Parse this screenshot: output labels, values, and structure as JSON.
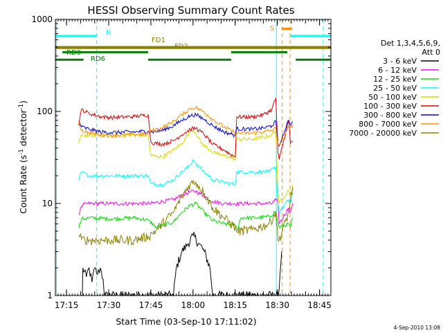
{
  "chart_data": {
    "type": "line",
    "title": "HESSI Observing Summary Count Rates",
    "xlabel": "Start Time (03-Sep-10 17:11:02)",
    "ylabel": "Count Rate (s",
    "ylabel_sup1": "-1",
    "ylabel_mid": " detector",
    "ylabel_sup2": "-1",
    "ylabel_end": ")",
    "y_scale": "log",
    "ylim": [
      1,
      1000
    ],
    "x_unit": "minutes after 17:11:02",
    "xlim": [
      0,
      98
    ],
    "x_ticks": [
      {
        "label": "17:15",
        "x": 3.97
      },
      {
        "label": "17:30",
        "x": 18.97
      },
      {
        "label": "17:45",
        "x": 33.97
      },
      {
        "label": "18:00",
        "x": 48.97
      },
      {
        "label": "18:15",
        "x": 63.97
      },
      {
        "label": "18:30",
        "x": 78.97
      },
      {
        "label": "18:45",
        "x": 93.97
      }
    ],
    "y_ticks": [
      {
        "label": "1",
        "value": 1
      },
      {
        "label": "10",
        "value": 10
      },
      {
        "label": "100",
        "value": 100
      },
      {
        "label": "1000",
        "value": 1000
      }
    ],
    "timestamp": "4-Sep-2010 13:08",
    "legend": {
      "header1": "Det 1,3,4,5,6,9,",
      "header2": "Att 0",
      "entries": [
        {
          "label": "3 - 6 keV",
          "color": "#000000"
        },
        {
          "label": "6 - 12 keV",
          "color": "#ff00ff"
        },
        {
          "label": "12 - 25 keV",
          "color": "#00e000"
        },
        {
          "label": "25 - 50 keV",
          "color": "#00ffff"
        },
        {
          "label": "50 - 100 keV",
          "color": "#d8d800"
        },
        {
          "label": "100 - 300 keV",
          "color": "#e00000"
        },
        {
          "label": "300 - 800 keV",
          "color": "#0000e0"
        },
        {
          "label": "800 - 7000 keV",
          "color": "#ff8c00"
        },
        {
          "label": "7000 - 20000 keV",
          "color": "#8b8000"
        }
      ]
    },
    "series": [
      {
        "name": "3 - 6 keV",
        "color": "#000000",
        "points": [
          [
            9.6,
            1
          ],
          [
            9.8,
            2
          ],
          [
            11,
            1.6
          ],
          [
            12,
            2
          ],
          [
            13,
            1.4
          ],
          [
            14,
            2
          ],
          [
            15,
            1.7
          ],
          [
            16,
            2
          ],
          [
            17,
            1.5
          ],
          [
            17.5,
            1
          ],
          [
            42,
            1
          ],
          [
            43,
            2
          ],
          [
            45,
            3
          ],
          [
            47,
            3.6
          ],
          [
            49,
            4.5
          ],
          [
            51,
            3.7
          ],
          [
            53,
            3
          ],
          [
            55,
            2
          ],
          [
            56,
            1
          ],
          [
            79.3,
            1
          ],
          [
            80.5,
            3
          ]
        ]
      },
      {
        "name": "6 - 12 keV",
        "color": "#ff00ff",
        "points": [
          [
            8.3,
            7.5
          ],
          [
            9.3,
            9.3
          ],
          [
            11,
            10
          ],
          [
            14,
            10
          ],
          [
            20,
            10
          ],
          [
            28,
            10
          ],
          [
            34,
            10
          ],
          [
            38,
            10.5
          ],
          [
            42,
            11
          ],
          [
            45,
            12.3
          ],
          [
            48,
            13.4
          ],
          [
            50,
            13.6
          ],
          [
            53,
            12
          ],
          [
            56,
            10.5
          ],
          [
            60,
            10
          ],
          [
            66,
            10
          ],
          [
            70,
            10
          ],
          [
            74,
            10
          ],
          [
            77,
            10
          ],
          [
            78.4,
            11
          ],
          [
            79.2,
            10
          ],
          [
            79.6,
            6
          ],
          [
            83,
            9
          ],
          [
            83.6,
            8
          ],
          [
            84.4,
            10
          ]
        ]
      },
      {
        "name": "12 - 25 keV",
        "color": "#00e000",
        "points": [
          [
            8.3,
            5.4
          ],
          [
            9.3,
            6.8
          ],
          [
            12,
            7
          ],
          [
            20,
            6.8
          ],
          [
            28,
            7
          ],
          [
            33,
            6.6
          ],
          [
            36,
            5.5
          ],
          [
            42,
            6.3
          ],
          [
            45,
            8
          ],
          [
            48,
            9.6
          ],
          [
            50,
            10
          ],
          [
            53,
            8
          ],
          [
            56,
            6.5
          ],
          [
            60,
            6
          ],
          [
            64,
            5.8
          ],
          [
            64.5,
            5
          ],
          [
            66,
            7
          ],
          [
            72,
            7
          ],
          [
            76,
            7.2
          ],
          [
            78.4,
            8.2
          ],
          [
            79.2,
            6
          ],
          [
            79.6,
            5.5
          ],
          [
            83,
            6
          ],
          [
            83.6,
            5.5
          ],
          [
            84.4,
            7
          ]
        ]
      },
      {
        "name": "25 - 50 keV",
        "color": "#00ffff",
        "points": [
          [
            8.3,
            18
          ],
          [
            9.3,
            22
          ],
          [
            12,
            20
          ],
          [
            16,
            20
          ],
          [
            20,
            20
          ],
          [
            28,
            20
          ],
          [
            33,
            20
          ],
          [
            34,
            16.5
          ],
          [
            38,
            16
          ],
          [
            42,
            18
          ],
          [
            45,
            22
          ],
          [
            48,
            26
          ],
          [
            49,
            30
          ],
          [
            50,
            27
          ],
          [
            53,
            22
          ],
          [
            56,
            18
          ],
          [
            60,
            17
          ],
          [
            64,
            16
          ],
          [
            64.5,
            22
          ],
          [
            70,
            22
          ],
          [
            76,
            22
          ],
          [
            78.4,
            25
          ],
          [
            79.2,
            10
          ],
          [
            79.6,
            8
          ],
          [
            83,
            11
          ],
          [
            83.6,
            10
          ],
          [
            84.4,
            13
          ]
        ]
      },
      {
        "name": "50 - 100 keV",
        "color": "#d8d800",
        "points": [
          [
            8.3,
            45
          ],
          [
            9.3,
            55
          ],
          [
            12,
            55
          ],
          [
            16,
            55
          ],
          [
            20,
            55
          ],
          [
            28,
            56
          ],
          [
            33,
            55
          ],
          [
            34,
            33
          ],
          [
            38,
            32
          ],
          [
            42,
            38
          ],
          [
            45,
            45
          ],
          [
            47,
            55
          ],
          [
            48.5,
            65
          ],
          [
            50,
            58
          ],
          [
            52,
            45
          ],
          [
            55,
            38
          ],
          [
            58,
            34
          ],
          [
            62,
            32
          ],
          [
            64,
            30
          ],
          [
            64.5,
            50
          ],
          [
            70,
            50
          ],
          [
            76,
            54
          ],
          [
            78.4,
            60
          ],
          [
            79.2,
            13
          ],
          [
            79.6,
            10
          ],
          [
            83,
            14
          ],
          [
            83.6,
            12
          ],
          [
            84.4,
            16
          ]
        ]
      },
      {
        "name": "100 - 300 keV",
        "color": "#e00000",
        "points": [
          [
            8.3,
            70
          ],
          [
            9.3,
            105
          ],
          [
            12,
            95
          ],
          [
            16,
            88
          ],
          [
            20,
            86
          ],
          [
            28,
            88
          ],
          [
            33,
            92
          ],
          [
            34,
            46
          ],
          [
            38,
            44
          ],
          [
            42,
            48
          ],
          [
            45,
            56
          ],
          [
            48,
            64
          ],
          [
            50,
            66
          ],
          [
            53,
            56
          ],
          [
            56,
            44
          ],
          [
            60,
            38
          ],
          [
            64,
            32
          ],
          [
            64.5,
            87
          ],
          [
            70,
            87
          ],
          [
            74,
            92
          ],
          [
            77,
            105
          ],
          [
            78.4,
            140
          ],
          [
            79.2,
            35
          ],
          [
            79.6,
            30
          ],
          [
            83,
            80
          ],
          [
            83.6,
            45
          ],
          [
            84.4,
            48
          ]
        ]
      },
      {
        "name": "300 - 800 keV",
        "color": "#0000e0",
        "points": [
          [
            8.3,
            80
          ],
          [
            9.3,
            68
          ],
          [
            12,
            64
          ],
          [
            16,
            60
          ],
          [
            20,
            59
          ],
          [
            28,
            60
          ],
          [
            33,
            61
          ],
          [
            34,
            60
          ],
          [
            38,
            62
          ],
          [
            42,
            70
          ],
          [
            45,
            80
          ],
          [
            48,
            90
          ],
          [
            50,
            92
          ],
          [
            53,
            82
          ],
          [
            56,
            70
          ],
          [
            60,
            60
          ],
          [
            64,
            55
          ],
          [
            64.5,
            65
          ],
          [
            70,
            64
          ],
          [
            74,
            66
          ],
          [
            77,
            70
          ],
          [
            78.4,
            78
          ],
          [
            79.2,
            45
          ],
          [
            79.6,
            42
          ],
          [
            83,
            80
          ],
          [
            83.6,
            72
          ],
          [
            84.4,
            78
          ]
        ]
      },
      {
        "name": "800 - 7000 keV",
        "color": "#ff8c00",
        "points": [
          [
            8.3,
            80
          ],
          [
            9.3,
            62
          ],
          [
            12,
            59
          ],
          [
            16,
            56
          ],
          [
            20,
            55
          ],
          [
            28,
            56
          ],
          [
            33,
            57
          ],
          [
            34,
            62
          ],
          [
            38,
            66
          ],
          [
            42,
            78
          ],
          [
            45,
            92
          ],
          [
            48,
            108
          ],
          [
            50,
            110
          ],
          [
            53,
            98
          ],
          [
            56,
            82
          ],
          [
            60,
            68
          ],
          [
            64,
            58
          ],
          [
            64.5,
            58
          ],
          [
            70,
            58
          ],
          [
            74,
            60
          ],
          [
            77,
            62
          ],
          [
            78.4,
            66
          ],
          [
            79.2,
            45
          ],
          [
            79.6,
            43
          ],
          [
            83,
            68
          ],
          [
            83.6,
            66
          ],
          [
            84.4,
            70
          ]
        ]
      },
      {
        "name": "7000 - 20000 keV",
        "color": "#8b8000",
        "points": [
          [
            8.3,
            4.5
          ],
          [
            9.3,
            4.1
          ],
          [
            12,
            4
          ],
          [
            20,
            4
          ],
          [
            28,
            4
          ],
          [
            33,
            4.4
          ],
          [
            36,
            5.2
          ],
          [
            42,
            8
          ],
          [
            45,
            12
          ],
          [
            48,
            16.5
          ],
          [
            50,
            17
          ],
          [
            53,
            13
          ],
          [
            56,
            9
          ],
          [
            60,
            7
          ],
          [
            64,
            5.5
          ],
          [
            64.5,
            5
          ],
          [
            70,
            5.2
          ],
          [
            76,
            6
          ],
          [
            78.4,
            8
          ],
          [
            79.2,
            4
          ],
          [
            79.6,
            4
          ],
          [
            83,
            8
          ],
          [
            83.6,
            11
          ],
          [
            84.4,
            15
          ]
        ]
      }
    ],
    "bars": [
      {
        "name": "N",
        "label": "N",
        "color": "#00ffff",
        "level": 660,
        "segments": [
          [
            0,
            12.5
          ],
          [
            12.5,
            14.7
          ],
          [
            83.5,
            98
          ]
        ]
      },
      {
        "name": "S",
        "label": "S",
        "color": "#ff8c00",
        "level": 790,
        "segments": [
          [
            80.5,
            84.2
          ]
        ]
      },
      {
        "name": "FD1",
        "label": "FD1",
        "color": "#8b8000",
        "level": 500,
        "segments": [
          [
            0,
            98
          ]
        ]
      },
      {
        "name": "FD2",
        "label": "FD2",
        "color": "#8b8000",
        "level": 490,
        "segments": [
          [
            0,
            98
          ]
        ]
      },
      {
        "name": "RD0",
        "label": "RD0",
        "color": "#008000",
        "level": 440,
        "segments": [
          [
            2.5,
            33
          ],
          [
            62.5,
            82.5
          ]
        ]
      },
      {
        "name": "RD6",
        "label": "RD6",
        "color": "#008000",
        "level": 365,
        "segments": [
          [
            0,
            10
          ],
          [
            33,
            62.5
          ],
          [
            85.5,
            98
          ]
        ]
      }
    ],
    "vertical_markers": [
      {
        "name": "cyan-solid-left",
        "x": 0.35,
        "color": "#00ffff",
        "style": "solid"
      },
      {
        "name": "cyan-dashed-1",
        "x": 14.7,
        "color": "#00ffff",
        "style": "dashed"
      },
      {
        "name": "cyan-solid-2",
        "x": 78.6,
        "color": "#00ffff",
        "style": "solid"
      },
      {
        "name": "orange-dashed-1",
        "x": 80.7,
        "color": "#ff8c00",
        "style": "dashed"
      },
      {
        "name": "orange-dashed-2",
        "x": 83.5,
        "color": "#ff8c00",
        "style": "dashed"
      },
      {
        "name": "cyan-dashed-2",
        "x": 95.3,
        "color": "#00ffff",
        "style": "dashed"
      }
    ]
  }
}
